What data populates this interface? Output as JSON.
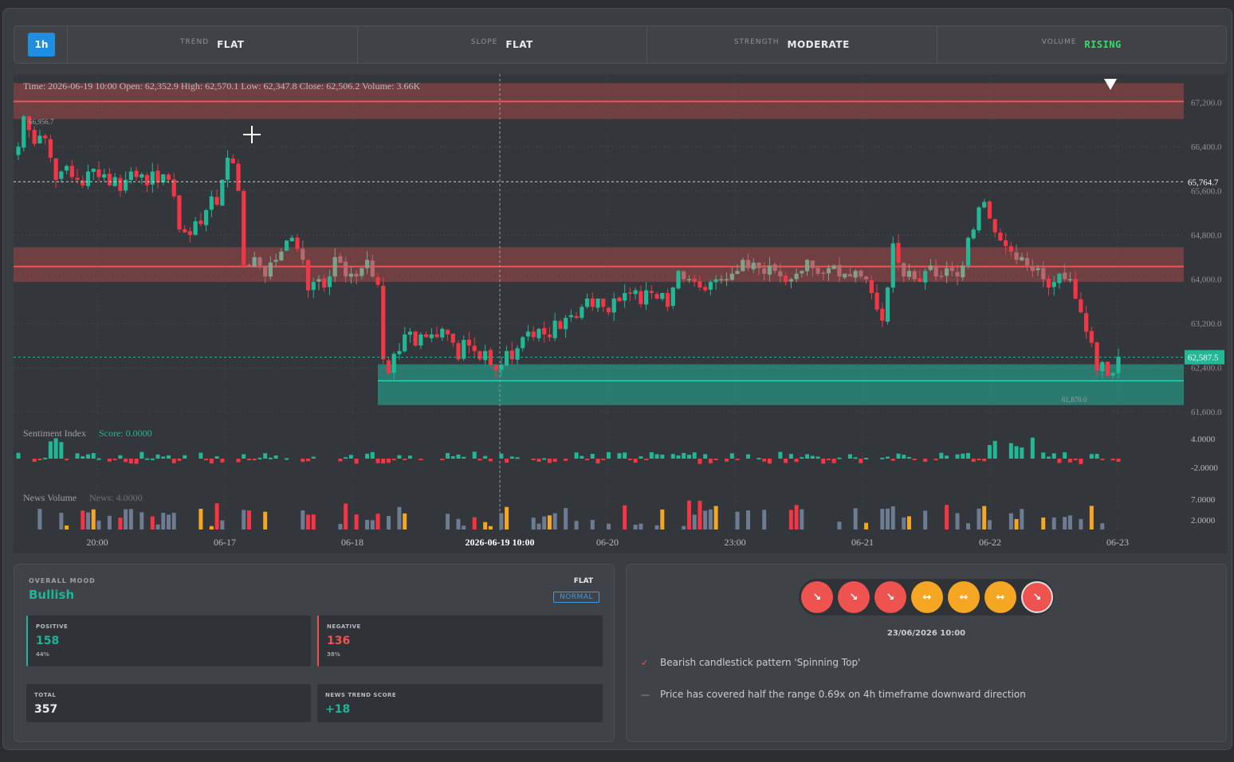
{
  "header": {
    "timeframe": "1h",
    "indicators": [
      {
        "key": "TREND",
        "value": "FLAT",
        "color": "#e8eaed"
      },
      {
        "key": "SLOPE",
        "value": "FLAT",
        "color": "#e8eaed"
      },
      {
        "key": "STRENGTH",
        "value": "MODERATE",
        "color": "#e8eaed"
      },
      {
        "key": "VOLUME",
        "value": "RISING",
        "color": "#2ee06a"
      }
    ]
  },
  "chart_data": {
    "type": "candlestick",
    "ohlc_legend": "Time: 2026-06-19 10:00    Open: 62,352.9    High: 62,570.1    Low: 62,347.8    Close: 62,506.2    Volume: 3.66K",
    "y_ticks": [
      "67,200.0",
      "66,400.0",
      "65,600.0",
      "64,800.0",
      "64,000.0",
      "63,200.0",
      "62,400.0",
      "61,600.0"
    ],
    "ylim": [
      61400,
      67600
    ],
    "x_ticks": [
      "20:00",
      "06-17",
      "06-18",
      "2026-06-19 10:00",
      "06-20",
      "23:00",
      "06-21",
      "06-22",
      "06-23"
    ],
    "crosshair_label": "2026-06-19 10:00",
    "price_labels": {
      "dashed_white": "65,764.7",
      "current": "62,587.5",
      "high_marker": "66,956.7",
      "low_marker": "61,870.0"
    },
    "zones": [
      {
        "type": "resistance",
        "from": 66900,
        "to": 67550,
        "line": 67220
      },
      {
        "type": "resistance",
        "from": 63950,
        "to": 64580,
        "line": 64230
      },
      {
        "type": "support",
        "from": 61720,
        "to": 62460,
        "line": 62160
      }
    ],
    "closes": [
      66400,
      66950,
      66700,
      66450,
      66600,
      66550,
      66200,
      65800,
      65950,
      66050,
      65850,
      65800,
      65700,
      65950,
      66000,
      65850,
      65900,
      65700,
      65850,
      65600,
      65800,
      65950,
      65850,
      65900,
      65700,
      65950,
      65750,
      65900,
      65800,
      65500,
      64900,
      64850,
      64800,
      65050,
      65000,
      65250,
      65500,
      65350,
      65800,
      66200,
      66100,
      65600,
      64250,
      64250,
      64400,
      64250,
      64050,
      64300,
      64350,
      64500,
      64700,
      64750,
      64550,
      64350,
      63800,
      63950,
      64000,
      63850,
      64050,
      64400,
      64300,
      64050,
      64100,
      64050,
      64200,
      64350,
      64050,
      63900,
      62550,
      62300,
      62650,
      62700,
      63000,
      63050,
      62800,
      63000,
      62950,
      63000,
      62950,
      63100,
      63000,
      62850,
      62550,
      62900,
      62800,
      62700,
      62550,
      62700,
      62450,
      62350,
      62450,
      62700,
      62550,
      62750,
      62950,
      63050,
      62950,
      63100,
      63000,
      62950,
      63250,
      63100,
      63300,
      63350,
      63300,
      63500,
      63650,
      63500,
      63650,
      63500,
      63400,
      63650,
      63600,
      63750,
      63750,
      63800,
      63550,
      63800,
      63750,
      63650,
      63750,
      63500,
      63850,
      64150,
      64000,
      64000,
      63950,
      63850,
      63800,
      63950,
      64000,
      64000,
      64000,
      64100,
      64150,
      64350,
      64200,
      64300,
      64200,
      64100,
      64250,
      64150,
      64050,
      63950,
      64000,
      64100,
      64150,
      64350,
      64200,
      64100,
      64100,
      64200,
      64250,
      64050,
      64100,
      64050,
      64150,
      64050,
      64000,
      63750,
      63450,
      63250,
      63850,
      64650,
      64300,
      64050,
      64150,
      64000,
      63950,
      64150,
      64250,
      64050,
      64050,
      64200,
      64150,
      64050,
      64250,
      64750,
      64900,
      65300,
      65400,
      65100,
      64850,
      64700,
      64600,
      64500,
      64350,
      64400,
      64250,
      64150,
      64200,
      64000,
      63850,
      63950,
      64100,
      64000,
      64000,
      63650,
      63400,
      63050,
      62850,
      62350,
      62500,
      62250,
      62300,
      62600
    ],
    "sentiment": {
      "label": "Sentiment Index",
      "score_label": "Score: 0.0000",
      "ticks": [
        "4.0000",
        "-2.0000"
      ]
    },
    "news": {
      "label": "News Volume",
      "value_label": "News: 4.0000",
      "ticks": [
        "7.0000",
        "2.0000"
      ]
    }
  },
  "overall_mood": {
    "title": "OVERALL MOOD",
    "value": "Bullish",
    "trend": "FLAT",
    "badge": "NORMAL",
    "positive": {
      "label": "POSITIVE",
      "value": "158",
      "pct": "44%"
    },
    "negative": {
      "label": "NEGATIVE",
      "value": "136",
      "pct": "38%"
    },
    "total": {
      "label": "TOTAL",
      "value": "357"
    },
    "news_trend_score": {
      "label": "NEWS TREND SCORE",
      "value": "+18"
    }
  },
  "signals": {
    "circles": [
      {
        "kind": "down",
        "color": "#ef5350",
        "glyph": "↘"
      },
      {
        "kind": "down",
        "color": "#ef5350",
        "glyph": "↘"
      },
      {
        "kind": "down",
        "color": "#ef5350",
        "glyph": "↘"
      },
      {
        "kind": "sideways",
        "color": "#f5a623",
        "glyph": "↔"
      },
      {
        "kind": "sideways",
        "color": "#f5a623",
        "glyph": "↔"
      },
      {
        "kind": "sideways",
        "color": "#f5a623",
        "glyph": "↔"
      },
      {
        "kind": "down",
        "color": "#ef5350",
        "glyph": "↘",
        "selected": true
      }
    ],
    "date": "23/06/2026 10:00",
    "items": [
      {
        "mark": "✓",
        "text": "Bearish candlestick pattern 'Spinning Top'"
      },
      {
        "mark": "—",
        "text": "Price has covered half the range 0.69x on 4h timeframe downward direction"
      }
    ]
  }
}
